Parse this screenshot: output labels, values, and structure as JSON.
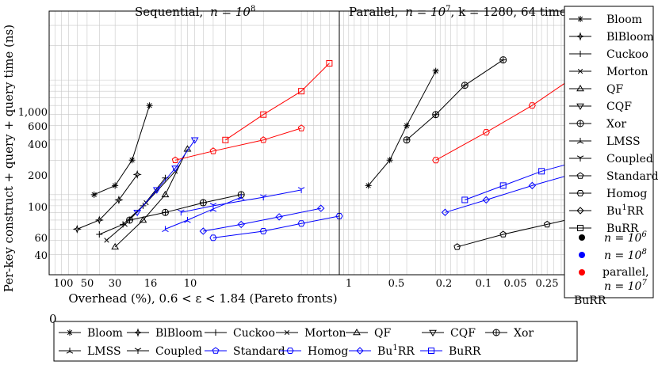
{
  "chart_data": [
    {
      "type": "line",
      "title": "Sequential, n = 10^8",
      "title_text": "Sequential,",
      "title_math": "n = 10",
      "title_exp": "8",
      "xlabel": "Overhead (%), 0.6 < ε < 1.84 (Pareto fronts)",
      "ylabel": "Per-key construct + query + query time (ns)",
      "x_scale": "log",
      "y_scale": "log",
      "xlim": [
        100,
        0.5
      ],
      "ylim": [
        20,
        4000
      ],
      "grid": true,
      "x_ticks": [
        "100",
        "50",
        "30",
        "16",
        "10"
      ],
      "y_ticks": [
        "1,000",
        "600",
        "400",
        "200",
        "100",
        "60",
        "40"
      ],
      "series": [
        {
          "name": "Bloom",
          "color": "#000000",
          "x": [
            44,
            30,
            22,
            16
          ],
          "y": [
            100,
            120,
            200,
            600
          ]
        },
        {
          "name": "BlBloom",
          "color": "#000000",
          "x": [
            60,
            40,
            28,
            20
          ],
          "y": [
            50,
            60,
            90,
            150
          ]
        },
        {
          "name": "Cuckoo",
          "color": "#000000",
          "x": [
            40,
            26,
            18,
            12
          ],
          "y": [
            45,
            55,
            80,
            140
          ]
        },
        {
          "name": "Morton",
          "color": "#000000",
          "x": [
            35,
            25,
            17,
            10
          ],
          "y": [
            40,
            55,
            85,
            160
          ]
        },
        {
          "name": "QF",
          "color": "#000000",
          "x": [
            30,
            18,
            12,
            8
          ],
          "y": [
            35,
            60,
            100,
            250
          ]
        },
        {
          "name": "CQF",
          "color": "#0000ff",
          "x": [
            20,
            14,
            10,
            7
          ],
          "y": [
            70,
            110,
            170,
            300
          ]
        },
        {
          "name": "Xor",
          "color": "#000000",
          "x": [
            23,
            12,
            6,
            3
          ],
          "y": [
            60,
            70,
            85,
            100
          ]
        },
        {
          "name": "LMSS",
          "color": "#0000ff",
          "x": [
            12,
            8,
            5,
            3
          ],
          "y": [
            50,
            60,
            75,
            95
          ]
        },
        {
          "name": "Coupled",
          "color": "#0000ff",
          "x": [
            9,
            5,
            2,
            1
          ],
          "y": [
            70,
            80,
            95,
            110
          ]
        },
        {
          "name": "Standard",
          "color": "#ff0000",
          "x": [
            10,
            5,
            2,
            1
          ],
          "y": [
            200,
            240,
            300,
            380
          ]
        },
        {
          "name": "Homog",
          "color": "#0000ff",
          "x": [
            5,
            2,
            1,
            0.5
          ],
          "y": [
            42,
            48,
            56,
            65
          ]
        },
        {
          "name": "Bu1RR",
          "color": "#0000ff",
          "x": [
            6,
            3,
            1.5,
            0.7
          ],
          "y": [
            48,
            55,
            64,
            76
          ]
        },
        {
          "name": "BuRR",
          "color": "#ff0000",
          "x": [
            4,
            2,
            1,
            0.6
          ],
          "y": [
            300,
            500,
            800,
            1400
          ]
        }
      ]
    },
    {
      "type": "line",
      "title": "Parallel, n = 10^7, k = 1280, 64 times",
      "title_text": "Parallel,",
      "title_math": "n = 10",
      "title_exp": "7",
      "title_rest": ", k = 1280, 64 times",
      "xlabel": "Overhead (%), 0.6 < ε < 1.84 (Pareto fronts)",
      "x_scale": "log",
      "y_scale": "log",
      "xlim": [
        100,
        0.1
      ],
      "ylim": [
        20,
        4000
      ],
      "grid": true,
      "x_ticks": [
        "1",
        "0.5",
        "0.2",
        "0.1",
        "0.05",
        "0.25",
        "0.1"
      ],
      "y_ticks": [
        "1,000",
        "600",
        "400",
        "200",
        "100",
        "60",
        "40"
      ],
      "series": [
        {
          "name": "Bloom",
          "color": "#000000",
          "x": [
            50,
            30,
            20,
            10
          ],
          "y": [
            120,
            200,
            400,
            1200
          ]
        },
        {
          "name": "Xor",
          "color": "#000000",
          "x": [
            20,
            10,
            5,
            2
          ],
          "y": [
            300,
            500,
            900,
            1500
          ]
        },
        {
          "name": "Homog",
          "color": "#ff0000",
          "x": [
            10,
            3,
            1,
            0.3
          ],
          "y": [
            200,
            350,
            600,
            1200
          ]
        },
        {
          "name": "Bu1RR",
          "color": "#0000ff",
          "x": [
            8,
            3,
            1,
            0.3
          ],
          "y": [
            70,
            90,
            120,
            160
          ]
        },
        {
          "name": "BuRR",
          "color": "#0000ff",
          "x": [
            5,
            2,
            0.8,
            0.2
          ],
          "y": [
            90,
            120,
            160,
            220
          ]
        },
        {
          "name": "Standard",
          "color": "#000000",
          "x": [
            6,
            2,
            0.7,
            0.2
          ],
          "y": [
            35,
            45,
            55,
            70
          ]
        }
      ]
    }
  ],
  "legend_right": {
    "methods": [
      "Bloom",
      "BlBloom",
      "Cuckoo",
      "Morton",
      "QF",
      "CQF",
      "Xor",
      "LMSS",
      "Coupled",
      "Standard",
      "Homog",
      "Bu1RR",
      "BuRR"
    ],
    "bu1rr_base": "Bu",
    "bu1rr_sup": "1",
    "bu1rr_rest": "RR",
    "n6_label": "n = 10",
    "n6_exp": "6",
    "n6_color": "#000000",
    "n8_label": "n = 10",
    "n8_exp": "8",
    "n8_color": "#0000ff",
    "par_label_1": "parallel,",
    "par_label_2": "n = 10",
    "par_exp": "7",
    "par_color": "#ff0000"
  },
  "legend_bottom": {
    "row1": [
      "Bloom",
      "BlBloom",
      "Cuckoo",
      "Morton",
      "QF",
      "CQF",
      "Xor"
    ],
    "row2": [
      "LMSS",
      "Coupled",
      "Standard",
      "Homog",
      "Bu1RR",
      "BuRR"
    ],
    "colors": {
      "Standard": "#0000ff",
      "Homog": "#0000ff",
      "Bu1RR": "#0000ff",
      "BuRR": "#0000ff"
    }
  },
  "bottom_zero": "0",
  "overlay_text": "BuRR"
}
